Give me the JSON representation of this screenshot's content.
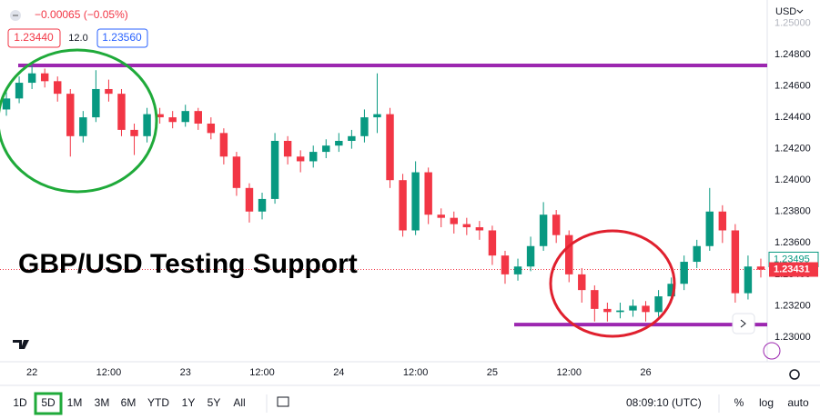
{
  "chart_data": {
    "type": "candlestick",
    "title": "GBP/USD Testing Support",
    "header": {
      "change": "−0.00065 (−0.05%)",
      "bid": "1.23440",
      "spread": "12.0",
      "ask": "1.23560"
    },
    "currency": "USD",
    "categories": [
      null,
      null,
      "22",
      null,
      null,
      null,
      null,
      null,
      "12:00",
      null,
      null,
      null,
      null,
      null,
      "23",
      null,
      null,
      null,
      null,
      null,
      "12:00",
      null,
      null,
      null,
      null,
      null,
      "24",
      null,
      null,
      null,
      null,
      null,
      "12:00",
      null,
      null,
      null,
      null,
      null,
      "25",
      null,
      null,
      null,
      null,
      null,
      "12:00",
      null,
      null,
      null,
      null,
      null,
      "26",
      null,
      null,
      null,
      null,
      null,
      null,
      null,
      null,
      null
    ],
    "open": [
      1.2445,
      1.2452,
      1.2462,
      1.2468,
      1.2463,
      1.2455,
      1.2428,
      1.244,
      1.2458,
      1.2455,
      1.2432,
      1.2428,
      1.2442,
      1.244,
      1.2437,
      1.2444,
      1.2436,
      1.243,
      1.2415,
      1.2395,
      1.238,
      1.2388,
      1.2425,
      1.2415,
      1.2412,
      1.2418,
      1.2422,
      1.2425,
      1.2428,
      1.244,
      1.2442,
      1.24,
      1.2368,
      1.2405,
      1.2378,
      1.2376,
      1.2372,
      1.237,
      1.2368,
      1.2352,
      1.234,
      1.2345,
      1.2358,
      1.2378,
      1.2365,
      1.234,
      1.233,
      1.2318,
      1.2316,
      1.2317,
      1.232,
      1.2316,
      1.2326,
      1.2334,
      1.2348,
      1.2358,
      1.238,
      1.2368,
      1.2328,
      1.2345
    ],
    "high": [
      1.2456,
      1.2466,
      1.2473,
      1.2471,
      1.2466,
      1.2458,
      1.2444,
      1.247,
      1.2464,
      1.2458,
      1.2436,
      1.2446,
      1.2446,
      1.2444,
      1.2448,
      1.2446,
      1.244,
      1.2433,
      1.2418,
      1.2398,
      1.2392,
      1.243,
      1.2428,
      1.2419,
      1.2422,
      1.2426,
      1.243,
      1.2432,
      1.2445,
      1.2468,
      1.2446,
      1.2404,
      1.2412,
      1.2408,
      1.2382,
      1.238,
      1.2376,
      1.2374,
      1.2371,
      1.2355,
      1.235,
      1.2364,
      1.2386,
      1.2381,
      1.2368,
      1.2344,
      1.2333,
      1.2322,
      1.2322,
      1.2324,
      1.2323,
      1.233,
      1.2338,
      1.2352,
      1.2362,
      1.2395,
      1.2384,
      1.2372,
      1.2352,
      1.235
    ],
    "low": [
      1.2441,
      1.2449,
      1.2458,
      1.2459,
      1.245,
      1.2415,
      1.2424,
      1.2437,
      1.245,
      1.2428,
      1.2416,
      1.2424,
      1.2436,
      1.2433,
      1.2434,
      1.2432,
      1.2426,
      1.241,
      1.239,
      1.2373,
      1.2375,
      1.2385,
      1.241,
      1.2405,
      1.2408,
      1.2414,
      1.2418,
      1.242,
      1.2424,
      1.243,
      1.2395,
      1.2364,
      1.2365,
      1.2372,
      1.237,
      1.2366,
      1.2365,
      1.2362,
      1.2346,
      1.2334,
      1.2336,
      1.2342,
      1.2355,
      1.236,
      1.2335,
      1.2322,
      1.231,
      1.231,
      1.2312,
      1.2313,
      1.231,
      1.2313,
      1.2322,
      1.233,
      1.2344,
      1.2355,
      1.236,
      1.2322,
      1.2324,
      1.2338
    ],
    "close": [
      1.2452,
      1.2462,
      1.2468,
      1.2463,
      1.2455,
      1.2428,
      1.244,
      1.2458,
      1.2455,
      1.2432,
      1.2428,
      1.2442,
      1.244,
      1.2437,
      1.2444,
      1.2436,
      1.243,
      1.2415,
      1.2395,
      1.238,
      1.2388,
      1.2425,
      1.2415,
      1.2412,
      1.2418,
      1.2422,
      1.2425,
      1.2428,
      1.244,
      1.2442,
      1.24,
      1.2368,
      1.2405,
      1.2378,
      1.2376,
      1.2372,
      1.237,
      1.2368,
      1.2352,
      1.234,
      1.2345,
      1.2358,
      1.2378,
      1.2365,
      1.234,
      1.233,
      1.2318,
      1.2316,
      1.2317,
      1.232,
      1.2316,
      1.2326,
      1.2334,
      1.2348,
      1.2358,
      1.238,
      1.2368,
      1.2328,
      1.2345,
      1.2343
    ],
    "up_color": "#089981",
    "down_color": "#f23645",
    "ylim": [
      1.22861,
      1.25147
    ],
    "yticks": [
      {
        "value": 1.23,
        "label": "1.23000"
      },
      {
        "value": 1.232,
        "label": "1.23200"
      },
      {
        "value": 1.234,
        "label": "1.23400"
      },
      {
        "value": 1.236,
        "label": "1.23600"
      },
      {
        "value": 1.238,
        "label": "1.23800"
      },
      {
        "value": 1.24,
        "label": "1.24000"
      },
      {
        "value": 1.242,
        "label": "1.24200"
      },
      {
        "value": 1.244,
        "label": "1.24400"
      },
      {
        "value": 1.246,
        "label": "1.24600"
      },
      {
        "value": 1.248,
        "label": "1.24800"
      },
      {
        "value": 1.25,
        "label": "1.25000"
      }
    ],
    "levels": [
      {
        "value": 1.2473,
        "color": "#9c27b0"
      },
      {
        "value": 1.2308,
        "color": "#9c27b0"
      }
    ],
    "price_labels": [
      {
        "value": 1.23495,
        "color": "#089981"
      },
      {
        "value": 1.23431,
        "color": "#f23645"
      }
    ],
    "grid": false,
    "toolbar": {
      "ranges": [
        "1D",
        "5D",
        "1M",
        "3M",
        "6M",
        "YTD",
        "1Y",
        "5Y",
        "All"
      ],
      "time": "08:09:10 (UTC)",
      "options": [
        "%",
        "log",
        "auto"
      ]
    }
  }
}
